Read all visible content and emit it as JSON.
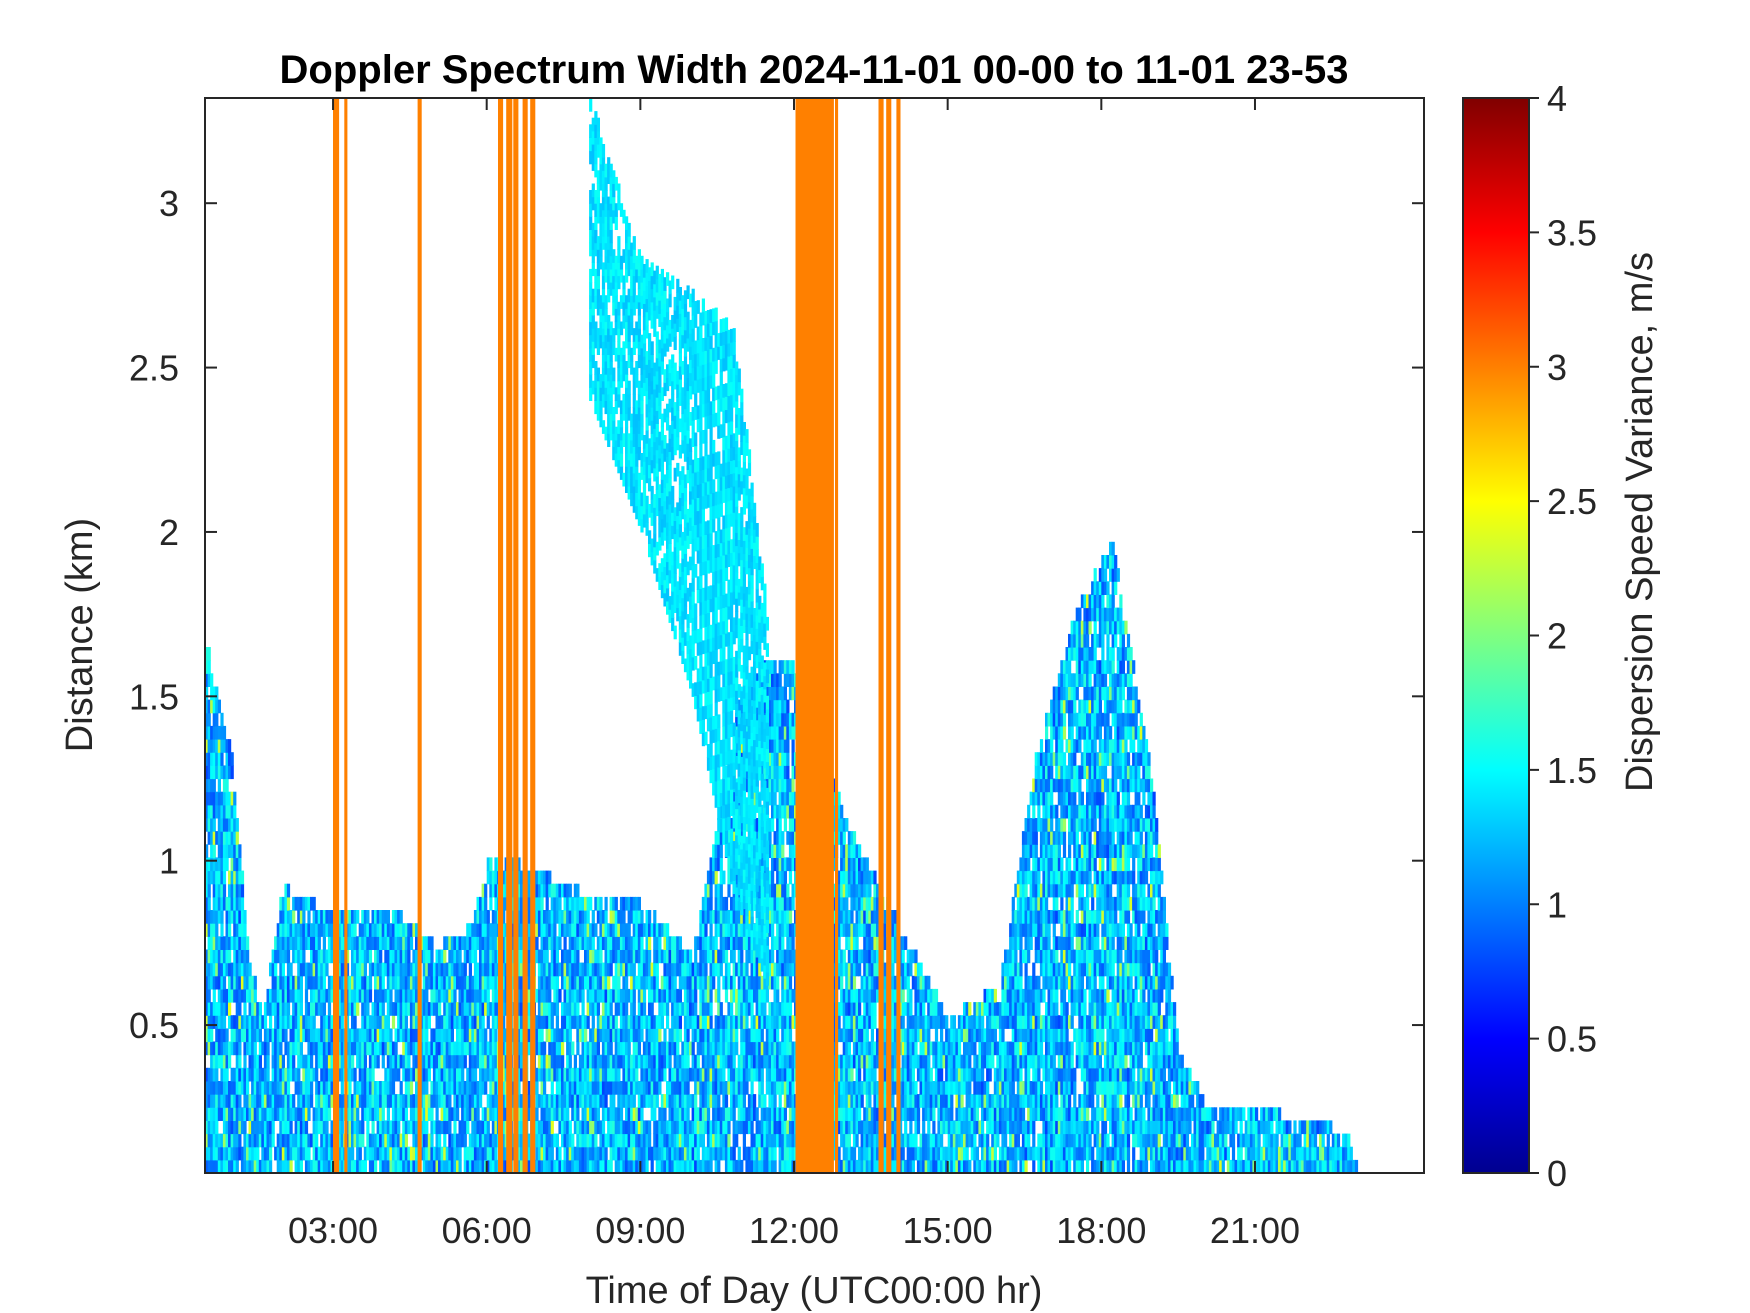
{
  "chart_data": {
    "type": "heatmap",
    "title": "Doppler Spectrum Width 2024-11-01 00-00 to 11-01 23-53",
    "xlabel": "Time of Day (UTC00:00 hr)",
    "ylabel": "Distance (km)",
    "xlim_hours": [
      0.5,
      24.3
    ],
    "ylim_km": [
      0.05,
      3.32
    ],
    "x_ticks": [
      {
        "value": 3,
        "label": "03:00"
      },
      {
        "value": 6,
        "label": "06:00"
      },
      {
        "value": 9,
        "label": "09:00"
      },
      {
        "value": 12,
        "label": "12:00"
      },
      {
        "value": 15,
        "label": "15:00"
      },
      {
        "value": 18,
        "label": "18:00"
      },
      {
        "value": 21,
        "label": "21:00"
      }
    ],
    "y_ticks": [
      {
        "value": 0.5,
        "label": "0.5"
      },
      {
        "value": 1,
        "label": "1"
      },
      {
        "value": 1.5,
        "label": "1.5"
      },
      {
        "value": 2,
        "label": "2"
      },
      {
        "value": 2.5,
        "label": "2.5"
      },
      {
        "value": 3,
        "label": "3"
      }
    ],
    "colorbar": {
      "label": "Dispersion Speed Variance, m/s",
      "colormap": "jet",
      "clim": [
        0,
        4
      ],
      "ticks": [
        {
          "value": 0,
          "label": "0"
        },
        {
          "value": 0.5,
          "label": "0.5"
        },
        {
          "value": 1,
          "label": "1"
        },
        {
          "value": 1.5,
          "label": "1.5"
        },
        {
          "value": 2,
          "label": "2"
        },
        {
          "value": 2.5,
          "label": "2.5"
        },
        {
          "value": 3,
          "label": "3"
        },
        {
          "value": 3.5,
          "label": "3.5"
        },
        {
          "value": 4,
          "label": "4"
        }
      ]
    },
    "grid": false,
    "saturated_columns_value": 3.0,
    "saturated_columns": [
      {
        "t0": 3.0,
        "t1": 3.12
      },
      {
        "t0": 3.22,
        "t1": 3.28
      },
      {
        "t0": 4.65,
        "t1": 4.73
      },
      {
        "t0": 6.22,
        "t1": 6.32
      },
      {
        "t0": 6.38,
        "t1": 6.5
      },
      {
        "t0": 6.52,
        "t1": 6.62
      },
      {
        "t0": 6.7,
        "t1": 6.8
      },
      {
        "t0": 6.85,
        "t1": 6.95
      },
      {
        "t0": 12.03,
        "t1": 12.78
      },
      {
        "t0": 12.8,
        "t1": 12.86
      },
      {
        "t0": 13.65,
        "t1": 13.75
      },
      {
        "t0": 13.8,
        "t1": 13.9
      },
      {
        "t0": 14.0,
        "t1": 14.08
      }
    ],
    "echo_top_km": [
      {
        "t": 0.5,
        "km": 1.65
      },
      {
        "t": 1.0,
        "km": 1.3
      },
      {
        "t": 1.3,
        "km": 0.75
      },
      {
        "t": 1.6,
        "km": 0.5
      },
      {
        "t": 2.0,
        "km": 0.9
      },
      {
        "t": 3.0,
        "km": 0.82
      },
      {
        "t": 4.0,
        "km": 0.85
      },
      {
        "t": 5.0,
        "km": 0.72
      },
      {
        "t": 5.7,
        "km": 0.78
      },
      {
        "t": 6.0,
        "km": 1.0
      },
      {
        "t": 7.0,
        "km": 0.95
      },
      {
        "t": 7.5,
        "km": 0.9
      },
      {
        "t": 8.0,
        "km": 0.88
      },
      {
        "t": 9.0,
        "km": 0.85
      },
      {
        "t": 10.0,
        "km": 0.7
      },
      {
        "t": 11.0,
        "km": 1.55
      },
      {
        "t": 12.0,
        "km": 1.6
      },
      {
        "t": 13.0,
        "km": 1.1
      },
      {
        "t": 14.0,
        "km": 0.8
      },
      {
        "t": 15.0,
        "km": 0.5
      },
      {
        "t": 16.0,
        "km": 0.6
      },
      {
        "t": 16.7,
        "km": 1.3
      },
      {
        "t": 17.5,
        "km": 1.75
      },
      {
        "t": 18.2,
        "km": 1.95
      },
      {
        "t": 19.0,
        "km": 1.2
      },
      {
        "t": 19.5,
        "km": 0.4
      },
      {
        "t": 20.0,
        "km": 0.25
      },
      {
        "t": 21.0,
        "km": 0.22
      },
      {
        "t": 22.0,
        "km": 0.2
      },
      {
        "t": 22.8,
        "km": 0.15
      },
      {
        "t": 23.0,
        "km": 0.05
      }
    ],
    "cloud_band": {
      "value": 1.4,
      "points": [
        {
          "t": 8.0,
          "bottom_km": 2.4,
          "top_km": 3.3
        },
        {
          "t": 9.0,
          "bottom_km": 2.0,
          "top_km": 2.8
        },
        {
          "t": 10.0,
          "bottom_km": 1.5,
          "top_km": 2.7
        },
        {
          "t": 10.8,
          "bottom_km": 0.9,
          "top_km": 2.6
        },
        {
          "t": 11.5,
          "bottom_km": 0.6,
          "top_km": 1.7
        }
      ]
    }
  }
}
